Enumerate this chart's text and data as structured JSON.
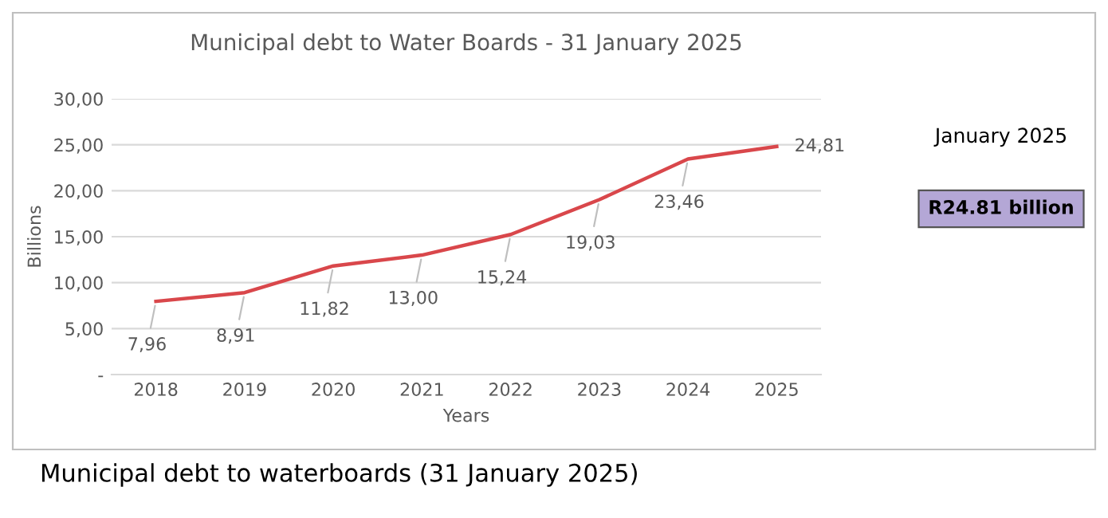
{
  "chart_data": {
    "type": "line",
    "title": "Municipal debt to Water Boards - 31 January 2025",
    "xlabel": "Years",
    "ylabel": "Billions",
    "categories": [
      "2018",
      "2019",
      "2020",
      "2021",
      "2022",
      "2023",
      "2024",
      "2025"
    ],
    "series": [
      {
        "color": "#d9474b",
        "values": [
          7.96,
          8.91,
          11.82,
          13.0,
          15.24,
          19.03,
          23.46,
          24.81
        ],
        "value_labels": [
          "7,96",
          "8,91",
          "11,82",
          "13,00",
          "15,24",
          "19,03",
          "23,46",
          "24,81"
        ]
      }
    ],
    "ylim": [
      0,
      30
    ],
    "yticks": [
      {
        "value": 0,
        "label": "-"
      },
      {
        "value": 5,
        "label": "5,00"
      },
      {
        "value": 10,
        "label": "10,00"
      },
      {
        "value": 15,
        "label": "15,00"
      },
      {
        "value": 20,
        "label": "20,00"
      },
      {
        "value": 25,
        "label": "25,00"
      },
      {
        "value": 30,
        "label": "30,00"
      }
    ],
    "grid": "y",
    "legend": false,
    "marker": "none",
    "line_style": "solid",
    "annotations": [
      "January 2025",
      "R24.81 billion",
      "Municipal debt to waterboards (31 January 2025)"
    ]
  }
}
